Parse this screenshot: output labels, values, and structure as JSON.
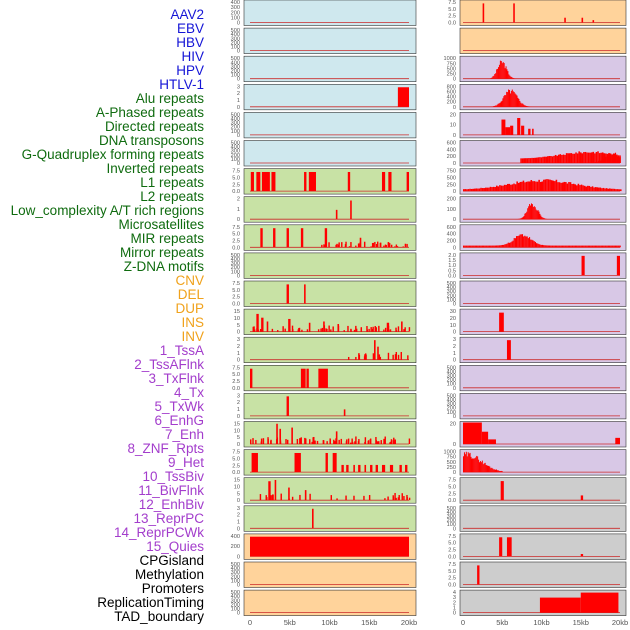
{
  "colors": {
    "viral": "#1515d6",
    "repeat": "#0f6b0f",
    "sv": "#f0a21c",
    "chromatin": "#a33dcc",
    "other": "#000000",
    "bg_blue": "#cfe8ee",
    "bg_green": "#c8e2a5",
    "bg_purple": "#d8c8e6",
    "bg_orange": "#ffd39b",
    "bg_gray": "#cdcdcd",
    "bar": "#ff0000"
  },
  "chart_data": {
    "type": "bar",
    "title": "",
    "xlabel": "",
    "ylabel": "",
    "x_ticks": [
      "0",
      "5kb",
      "10kb",
      "15kb",
      "20kb"
    ],
    "x_range_kb": [
      0,
      20
    ],
    "labels": [
      {
        "text": "AAV2",
        "group": "viral"
      },
      {
        "text": "EBV",
        "group": "viral"
      },
      {
        "text": "HBV",
        "group": "viral"
      },
      {
        "text": "HIV",
        "group": "viral"
      },
      {
        "text": "HPV",
        "group": "viral"
      },
      {
        "text": "HTLV-1",
        "group": "viral"
      },
      {
        "text": "Alu repeats",
        "group": "repeat"
      },
      {
        "text": "A-Phased repeats",
        "group": "repeat"
      },
      {
        "text": "Directed repeats",
        "group": "repeat"
      },
      {
        "text": "DNA transposons",
        "group": "repeat"
      },
      {
        "text": "G-Quadruplex forming repeats",
        "group": "repeat"
      },
      {
        "text": "Inverted repeats",
        "group": "repeat"
      },
      {
        "text": "L1 repeats",
        "group": "repeat"
      },
      {
        "text": "L2 repeats",
        "group": "repeat"
      },
      {
        "text": "Low_complexity A/T rich regions",
        "group": "repeat"
      },
      {
        "text": "Microsatellites",
        "group": "repeat"
      },
      {
        "text": "MIR repeats",
        "group": "repeat"
      },
      {
        "text": "Mirror repeats",
        "group": "repeat"
      },
      {
        "text": "Z-DNA motifs",
        "group": "repeat"
      },
      {
        "text": "CNV",
        "group": "sv"
      },
      {
        "text": "DEL",
        "group": "sv"
      },
      {
        "text": "DUP",
        "group": "sv"
      },
      {
        "text": "INS",
        "group": "sv"
      },
      {
        "text": "INV",
        "group": "sv"
      },
      {
        "text": "1_TssA",
        "group": "chromatin"
      },
      {
        "text": "2_TssAFlnk",
        "group": "chromatin"
      },
      {
        "text": "3_TxFlnk",
        "group": "chromatin"
      },
      {
        "text": "4_Tx",
        "group": "chromatin"
      },
      {
        "text": "5_TxWk",
        "group": "chromatin"
      },
      {
        "text": "6_EnhG",
        "group": "chromatin"
      },
      {
        "text": "7_Enh",
        "group": "chromatin"
      },
      {
        "text": "8_ZNF_Rpts",
        "group": "chromatin"
      },
      {
        "text": "9_Het",
        "group": "chromatin"
      },
      {
        "text": "10_TssBiv",
        "group": "chromatin"
      },
      {
        "text": "11_BivFlnk",
        "group": "chromatin"
      },
      {
        "text": "12_EnhBiv",
        "group": "chromatin"
      },
      {
        "text": "13_ReprPC",
        "group": "chromatin"
      },
      {
        "text": "14_ReprPCWk",
        "group": "chromatin"
      },
      {
        "text": "15_Quies",
        "group": "chromatin"
      },
      {
        "text": "CPGisland",
        "group": "other"
      },
      {
        "text": "Methylation",
        "group": "other"
      },
      {
        "text": "Promoters",
        "group": "other"
      },
      {
        "text": "ReplicationTiming",
        "group": "other"
      },
      {
        "text": "TAD_boundary",
        "group": "other"
      }
    ],
    "left_panels": [
      {
        "name": "AAV2-EBV",
        "bg": "bg_blue",
        "ticks": [
          "400",
          "300",
          "200",
          "100",
          "0"
        ],
        "bars": []
      },
      {
        "name": "HBV",
        "bg": "bg_blue",
        "ticks": [
          "500",
          "400",
          "300",
          "200",
          "100",
          "0"
        ],
        "bars": []
      },
      {
        "name": "HIV-HPV",
        "bg": "bg_blue",
        "ticks": [
          "500",
          "400",
          "300",
          "200",
          "100",
          "0"
        ],
        "bars": []
      },
      {
        "name": "HTLV-1/Alu",
        "bg": "bg_blue",
        "ticks": [
          "3",
          "2",
          "1",
          "0"
        ],
        "ymax": 3.3,
        "bars": [
          [
            18.6,
            20.0,
            3
          ]
        ]
      },
      {
        "name": "A-Phased/Directed",
        "bg": "bg_blue",
        "ticks": [
          "500",
          "400",
          "300",
          "200",
          "100",
          "0"
        ],
        "bars": []
      },
      {
        "name": "DNA transposons/G-Quad",
        "bg": "bg_blue",
        "ticks": [
          "500",
          "400",
          "300",
          "200",
          "100",
          "0"
        ],
        "bars": []
      },
      {
        "name": "L1/L2",
        "bg": "bg_green",
        "ticks": [
          "7.5",
          "5.0",
          "2.5",
          "0.0"
        ],
        "ymax": 9,
        "bars": "l1"
      },
      {
        "name": "Low_complexity/Micro",
        "bg": "bg_green",
        "ticks": [
          "2",
          "1",
          "0"
        ],
        "ymax": 2.3,
        "bars": [
          [
            10.8,
            11.0,
            1
          ],
          [
            12.6,
            12.8,
            2
          ]
        ]
      },
      {
        "name": "MIR/Mirror",
        "bg": "bg_green",
        "ticks": [
          "7.5",
          "5.0",
          "2.5",
          "0.0"
        ],
        "ymax": 9,
        "bars": "mir"
      },
      {
        "name": "Z-DNA",
        "bg": "bg_green",
        "ticks": [
          "500",
          "400",
          "300",
          "200",
          "100",
          "0"
        ],
        "bars": []
      },
      {
        "name": "CNV/DEL/DUP",
        "bg": "bg_green",
        "ticks": [
          "7.5",
          "5.0",
          "2.5",
          "0.0"
        ],
        "ymax": 9,
        "bars": [
          [
            4.6,
            4.9,
            8
          ],
          [
            6.8,
            7.0,
            8
          ]
        ]
      },
      {
        "name": "INS/INV",
        "bg": "bg_green",
        "ticks": [
          "15",
          "10",
          "5",
          "0"
        ],
        "ymax": 17,
        "bars": "ins"
      },
      {
        "name": "1_TssA/2_TssAFlnk",
        "bg": "bg_green",
        "ticks": [
          "3",
          "2",
          "1",
          "0"
        ],
        "ymax": 3.3,
        "bars": "tssa"
      },
      {
        "name": "3_TxFlnk/4_Tx",
        "bg": "bg_green",
        "ticks": [
          "7.5",
          "5.0",
          "2.5",
          "0.0"
        ],
        "ymax": 9,
        "bars": [
          [
            0.0,
            0.3,
            8
          ],
          [
            6.4,
            7.0,
            8
          ],
          [
            7.1,
            7.4,
            8
          ],
          [
            8.6,
            9.8,
            8
          ]
        ]
      },
      {
        "name": "5_TxWk/6_EnhG",
        "bg": "bg_green",
        "ticks": [
          "3",
          "2",
          "1",
          "0"
        ],
        "ymax": 3.3,
        "bars": [
          [
            4.6,
            4.9,
            3
          ],
          [
            11.8,
            12.0,
            1
          ]
        ]
      },
      {
        "name": "7_Enh/8_ZNF",
        "bg": "bg_green",
        "ticks": [
          "15",
          "10",
          "5",
          "0"
        ],
        "ymax": 17,
        "bars": "enh"
      },
      {
        "name": "9_Het/10_TssBiv",
        "bg": "bg_green",
        "ticks": [
          "7.5",
          "5.0",
          "2.5",
          "0.0"
        ],
        "ymax": 9,
        "bars": "het"
      },
      {
        "name": "11_BivFlnk/12_EnhBiv",
        "bg": "bg_green",
        "ticks": [
          "15",
          "10",
          "5",
          "0"
        ],
        "ymax": 17,
        "bars": "biv"
      },
      {
        "name": "13/14 ReprPC",
        "bg": "bg_green",
        "ticks": [
          "3",
          "2",
          "1",
          "0"
        ],
        "ymax": 3.3,
        "bars": [
          [
            7.8,
            8.0,
            3
          ]
        ]
      },
      {
        "name": "15_Quies/CPGisland",
        "bg": "bg_orange",
        "ticks": [
          "400",
          "200",
          "0"
        ],
        "ymax": 480,
        "bars": [
          [
            0.0,
            20.0,
            440
          ]
        ]
      },
      {
        "name": "Methylation/Promoters",
        "bg": "bg_orange",
        "ticks": [
          "500",
          "400",
          "300",
          "200",
          "100",
          "0"
        ],
        "bars": []
      },
      {
        "name": "ReplicationTiming/TAD",
        "bg": "bg_orange",
        "ticks": [
          "500",
          "400",
          "300",
          "200",
          "100",
          "0"
        ],
        "bars": []
      }
    ],
    "right_panels": [
      {
        "name": "AAV2-EBV",
        "bg": "bg_orange",
        "ticks": [
          "7.5",
          "5.0",
          "2.5",
          "0.0"
        ],
        "ymax": 9,
        "bars": [
          [
            2.5,
            2.7,
            8
          ],
          [
            6.4,
            6.6,
            8
          ],
          [
            12.9,
            13.1,
            2
          ],
          [
            15.1,
            15.3,
            2
          ],
          [
            16.5,
            16.7,
            1
          ]
        ]
      },
      {
        "name": "HBV",
        "bg": "bg_orange",
        "ticks": [],
        "bars": []
      },
      {
        "name": "HIV-HPV",
        "bg": "bg_purple",
        "ticks": [
          "1000",
          "750",
          "500",
          "250",
          "0"
        ],
        "ymax": 1150,
        "bars": "hiv"
      },
      {
        "name": "HTLV-1/Alu",
        "bg": "bg_purple",
        "ticks": [
          "800",
          "600",
          "400",
          "200",
          "0"
        ],
        "ymax": 900,
        "bars": "alu"
      },
      {
        "name": "A-Phased/Directed",
        "bg": "bg_purple",
        "ticks": [
          "20",
          "10",
          "0"
        ],
        "ymax": 28,
        "bars": "aph"
      },
      {
        "name": "DNA transposons/G-Quad",
        "bg": "bg_purple",
        "ticks": [
          "600",
          "400",
          "200",
          "0"
        ],
        "ymax": 750,
        "bars": "gq"
      },
      {
        "name": "L1/L2",
        "bg": "bg_purple",
        "ticks": [
          "750",
          "500",
          "250",
          "0"
        ],
        "ymax": 850,
        "bars": "l1r"
      },
      {
        "name": "Low_complexity/Micro",
        "bg": "bg_purple",
        "ticks": [
          "200",
          "100",
          "0"
        ],
        "ymax": 260,
        "bars": "lc"
      },
      {
        "name": "MIR/Mirror",
        "bg": "bg_purple",
        "ticks": [
          "600",
          "400",
          "200",
          "0"
        ],
        "ymax": 750,
        "bars": "mirr"
      },
      {
        "name": "Z-DNA",
        "bg": "bg_purple",
        "ticks": [
          "2.0",
          "1.5",
          "1.0",
          "0.5",
          "0.0"
        ],
        "ymax": 2.2,
        "bars": [
          [
            15.1,
            15.5,
            2
          ],
          [
            19.6,
            20.0,
            2
          ]
        ]
      },
      {
        "name": "CNV/DEL/DUP",
        "bg": "bg_purple",
        "ticks": [
          "500",
          "400",
          "300",
          "200",
          "100",
          "0"
        ],
        "bars": []
      },
      {
        "name": "INS/INV",
        "bg": "bg_purple",
        "ticks": [
          "30",
          "20",
          "10",
          "0"
        ],
        "ymax": 34,
        "bars": [
          [
            4.6,
            5.2,
            30
          ]
        ]
      },
      {
        "name": "1_TssA/2_TssAFlnk",
        "bg": "bg_purple",
        "ticks": [
          "3",
          "2",
          "1",
          "0"
        ],
        "ymax": 3.3,
        "bars": [
          [
            5.6,
            6.1,
            3
          ]
        ]
      },
      {
        "name": "3_TxFlnk/4_Tx",
        "bg": "bg_purple",
        "ticks": [
          "500",
          "400",
          "300",
          "200",
          "100",
          "0"
        ],
        "bars": []
      },
      {
        "name": "5_TxWk/6_EnhG",
        "bg": "bg_purple",
        "ticks": [
          "500",
          "400",
          "300",
          "200",
          "100",
          "0"
        ],
        "bars": []
      },
      {
        "name": "7_Enh/8_ZNF",
        "bg": "bg_purple",
        "ticks": [
          "20",
          "0"
        ],
        "ymax": 28,
        "bars": "znf"
      },
      {
        "name": "9_Het/10_TssBiv",
        "bg": "bg_purple",
        "ticks": [
          "1000",
          "750",
          "500",
          "250",
          "0"
        ],
        "ymax": 1150,
        "bars": "hetr"
      },
      {
        "name": "11_BivFlnk/12_EnhBiv",
        "bg": "bg_gray",
        "ticks": [
          "7.5",
          "5.0",
          "2.5",
          "0.0"
        ],
        "ymax": 9,
        "bars": [
          [
            4.8,
            5.2,
            8
          ],
          [
            15.0,
            15.3,
            2
          ]
        ]
      },
      {
        "name": "13/14 ReprPC",
        "bg": "bg_gray",
        "ticks": [
          "500",
          "400",
          "300",
          "200",
          "100",
          "0"
        ],
        "bars": []
      },
      {
        "name": "15_Quies/CPGisland",
        "bg": "bg_gray",
        "ticks": [
          "7.5",
          "5.0",
          "2.5",
          "0.0"
        ],
        "ymax": 9,
        "bars": [
          [
            4.6,
            5.0,
            8
          ],
          [
            5.6,
            6.2,
            8
          ],
          [
            15.0,
            15.3,
            1
          ]
        ]
      },
      {
        "name": "Methylation/Promoters",
        "bg": "bg_gray",
        "ticks": [
          "7.5",
          "5.0",
          "2.5",
          "0.0"
        ],
        "ymax": 9,
        "bars": [
          [
            1.8,
            2.1,
            8
          ]
        ]
      },
      {
        "name": "ReplicationTiming/TAD",
        "bg": "bg_gray",
        "ticks": [
          "4",
          "3",
          "2",
          "1",
          "0"
        ],
        "ymax": 4.3,
        "bars": [
          [
            9.8,
            15.0,
            3
          ],
          [
            15.0,
            19.8,
            4
          ]
        ]
      }
    ]
  }
}
